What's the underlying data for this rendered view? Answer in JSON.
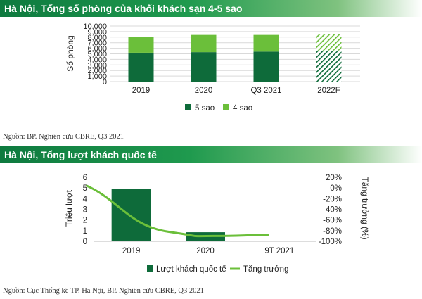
{
  "chart_data": [
    {
      "type": "bar",
      "stacked": true,
      "title": "Hà Nội, Tổng số phòng của khối khách sạn 4-5 sao",
      "ylabel": "Số phòng",
      "xlabel": "",
      "categories": [
        "2019",
        "2020",
        "Q3 2021",
        "2022F"
      ],
      "series": [
        {
          "name": "5 sao",
          "values": [
            5200,
            5300,
            5400,
            5600
          ],
          "color": "#0e6b3a"
        },
        {
          "name": "4 sao",
          "values": [
            2900,
            3100,
            3000,
            3000
          ],
          "color": "#6bbf3a"
        }
      ],
      "forecast_category": "2022F",
      "ylim": [
        0,
        10000
      ],
      "yticks": [
        "0",
        "1,000",
        "2,000",
        "3,000",
        "4,000",
        "5,000",
        "6,000",
        "7,000",
        "8,000",
        "9,000",
        "10,000"
      ],
      "grid": true,
      "legend": "bottom",
      "source": "Nguồn: BP. Nghiên cứu CBRE, Q3 2021"
    },
    {
      "type": "bar+line",
      "title": "Hà Nội, Tổng lượt khách quốc tế",
      "ylabel": "Triệu lượt",
      "y2label": "Tăng trưởng (%)",
      "categories": [
        "2019",
        "2020",
        "9T 2021"
      ],
      "bars": {
        "name": "Lượt khách quốc tế",
        "values": [
          4.9,
          0.85,
          0.06
        ],
        "color": "#0e6b3a"
      },
      "line": {
        "name": "Tăng trưởng",
        "points": [
          [
            -0.6,
            4
          ],
          [
            0.5,
            -82
          ],
          [
            1.1,
            -90
          ],
          [
            1.85,
            -88
          ]
        ],
        "color": "#6bbf3a"
      },
      "ylim": [
        0,
        6
      ],
      "yticks": [
        "0",
        "1",
        "2",
        "3",
        "4",
        "5",
        "6"
      ],
      "y2lim": [
        -100,
        20
      ],
      "y2ticks": [
        "-100%",
        "-80%",
        "-60%",
        "-40%",
        "-20%",
        "0%",
        "20%"
      ],
      "legend": "bottom",
      "source": "Nguồn: Cục Thống kê TP. Hà Nội, BP. Nghiên cứu CBRE, Q3 2021"
    }
  ]
}
